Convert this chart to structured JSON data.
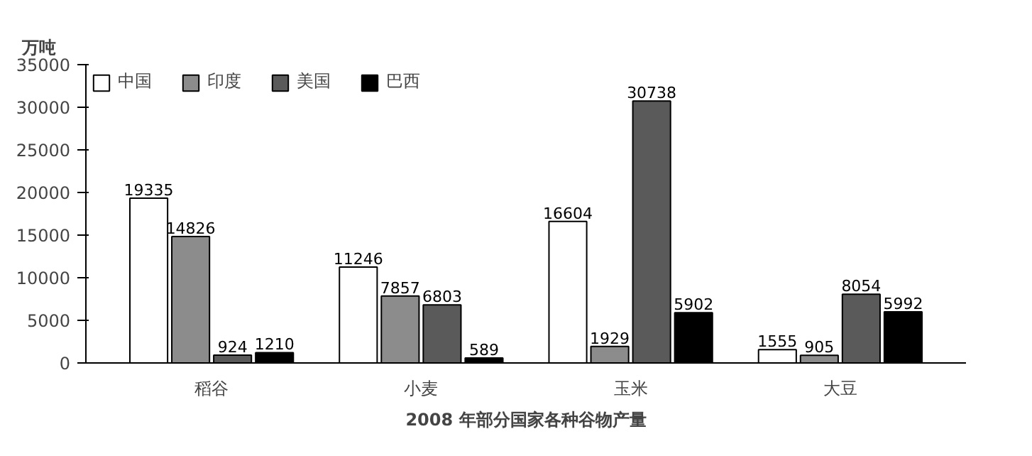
{
  "chart_data": {
    "type": "bar",
    "title": "2008 年部分国家各种谷物产量",
    "ylabel": "万吨",
    "categories": [
      "稻谷",
      "小麦",
      "玉米",
      "大豆"
    ],
    "series": [
      {
        "name": "中国",
        "color": "#ffffff",
        "values": [
          19335,
          11246,
          16604,
          1555
        ]
      },
      {
        "name": "印度",
        "color": "#8c8c8c",
        "values": [
          14826,
          7857,
          1929,
          905
        ]
      },
      {
        "name": "美国",
        "color": "#5a5a5a",
        "values": [
          924,
          6803,
          30738,
          8054
        ]
      },
      {
        "name": "巴西",
        "color": "#000000",
        "values": [
          1210,
          589,
          5902,
          5992
        ]
      }
    ],
    "ylim": [
      0,
      35000
    ],
    "yticks": [
      0,
      5000,
      10000,
      15000,
      20000,
      25000,
      30000,
      35000
    ],
    "grid": false,
    "legend": "top",
    "data_labels": true
  }
}
